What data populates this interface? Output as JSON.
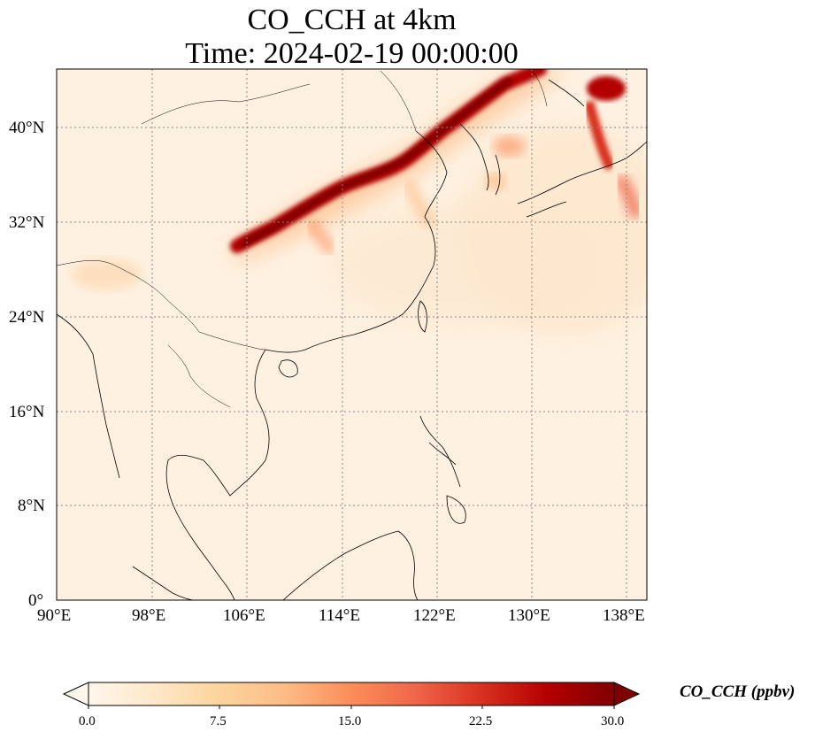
{
  "title_line1": "CO_CCH at 4km",
  "title_line2": "Time: 2024-02-19 00:00:00",
  "x_ticks": [
    "90°E",
    "98°E",
    "106°E",
    "114°E",
    "122°E",
    "130°E",
    "138°E"
  ],
  "y_ticks": [
    "40°N",
    "32°N",
    "24°N",
    "16°N",
    "8°N",
    "0°"
  ],
  "colorbar": {
    "label": "CO_CCH (ppbv)",
    "ticks": [
      "0.0",
      "7.5",
      "15.0",
      "22.5",
      "30.0"
    ],
    "vmin": 0,
    "vmax": 30,
    "colormap": [
      "#fff7ec",
      "#fee8c8",
      "#fdd49e",
      "#fdbb84",
      "#fc8d59",
      "#ef6548",
      "#d7301f",
      "#b30000",
      "#7f0000"
    ]
  },
  "map": {
    "lon_range": [
      90,
      139.5
    ],
    "lat_range": [
      0,
      45
    ],
    "background_color": "#fef1e1",
    "gridline_color": "#888888",
    "coastline_color": "#000000"
  }
}
